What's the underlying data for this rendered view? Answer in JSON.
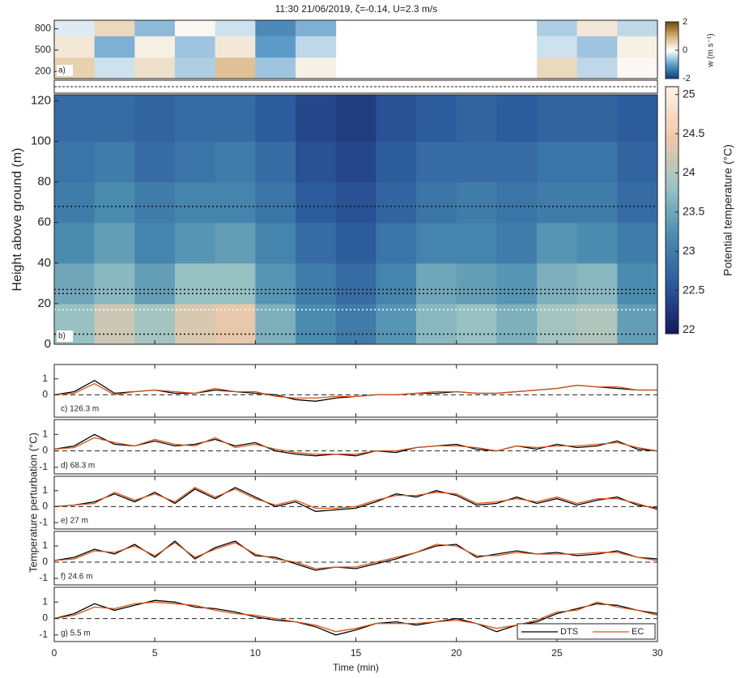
{
  "chart_data": [
    {
      "type": "heatmap",
      "title": "11:30 21/06/2019, ζ=-0.14, U=2.3 m/s",
      "panel_label": "a)",
      "x": [
        0,
        2,
        4,
        6,
        8,
        10,
        12,
        14,
        16,
        18,
        20,
        22,
        24,
        26,
        28,
        30
      ],
      "y": [
        100,
        400,
        700,
        920
      ],
      "values": [
        [
          0.6,
          -0.3,
          0.4,
          -0.5,
          0.8,
          -0.6,
          0.2,
          null,
          null,
          null,
          null,
          null,
          0.5,
          -0.4,
          0.1
        ],
        [
          0.3,
          -0.8,
          0.2,
          -0.6,
          0.3,
          -1.0,
          -0.4,
          null,
          null,
          null,
          null,
          null,
          -0.3,
          -0.6,
          0.2
        ],
        [
          -0.2,
          0.5,
          -0.7,
          0.1,
          -0.3,
          -1.2,
          -0.8,
          null,
          null,
          null,
          null,
          null,
          -0.5,
          0.3,
          -0.4
        ]
      ],
      "xlim": [
        0,
        30
      ],
      "ylim": [
        100,
        920
      ],
      "yticks": [
        200,
        500,
        800
      ],
      "clim": [
        -2,
        2
      ],
      "cticks": [
        -2,
        0,
        2
      ],
      "colorbar_label": "w (m s⁻¹)",
      "colormap": [
        "#0b3d7a",
        "#5d9cc9",
        "#ffffff",
        "#d7b27a",
        "#7a4a0c"
      ]
    },
    {
      "type": "heatmap",
      "panel_label": "b)",
      "ylabel": "Height above ground (m)",
      "x": [
        0,
        2,
        4,
        6,
        8,
        10,
        12,
        14,
        16,
        18,
        20,
        22,
        24,
        26,
        28,
        30
      ],
      "y": [
        0,
        20,
        40,
        60,
        80,
        100,
        123
      ],
      "values": [
        [
          23.8,
          24.2,
          23.9,
          24.3,
          24.4,
          23.6,
          23.2,
          23.0,
          23.3,
          23.7,
          23.8,
          23.6,
          23.9,
          24.0,
          23.4
        ],
        [
          23.5,
          23.7,
          23.4,
          23.8,
          23.8,
          23.3,
          23.0,
          22.8,
          23.1,
          23.5,
          23.4,
          23.3,
          23.6,
          23.7,
          23.2
        ],
        [
          23.2,
          23.4,
          23.1,
          23.3,
          23.4,
          23.1,
          22.8,
          22.6,
          22.9,
          23.1,
          23.1,
          23.0,
          23.3,
          23.2,
          23.0
        ],
        [
          23.0,
          23.2,
          23.0,
          23.1,
          23.1,
          22.9,
          22.6,
          22.5,
          22.7,
          22.9,
          23.0,
          22.9,
          23.0,
          23.0,
          22.8
        ],
        [
          22.9,
          23.0,
          22.8,
          22.9,
          23.0,
          22.8,
          22.5,
          22.4,
          22.6,
          22.8,
          22.8,
          22.8,
          22.9,
          22.9,
          22.7
        ],
        [
          22.8,
          22.8,
          22.7,
          22.8,
          22.8,
          22.6,
          22.4,
          22.3,
          22.5,
          22.6,
          22.7,
          22.6,
          22.7,
          22.7,
          22.6
        ]
      ],
      "xlim": [
        0,
        30
      ],
      "ylim": [
        0,
        123
      ],
      "yticks": [
        0,
        20,
        40,
        60,
        80,
        100,
        120
      ],
      "clim": [
        21.95,
        25.1
      ],
      "cticks": [
        22,
        22.5,
        23,
        23.5,
        24,
        24.5,
        25
      ],
      "colorbar_label": "Potential temperature (°C)",
      "colormap": [
        "#15165e",
        "#2c5a9c",
        "#4a8db0",
        "#9cc4c4",
        "#f0c9a8",
        "#fdf2ec"
      ]
    },
    {
      "type": "line",
      "panel_label": "c) 126.3 m",
      "x": [
        0,
        1,
        2,
        3,
        4,
        5,
        6,
        7,
        8,
        9,
        10,
        11,
        12,
        13,
        14,
        15,
        16,
        17,
        18,
        19,
        20,
        21,
        22,
        23,
        24,
        25,
        26,
        27,
        28,
        29,
        30
      ],
      "series": [
        {
          "color": "#000000",
          "values": [
            0,
            0.2,
            0.9,
            0.1,
            0.2,
            0.3,
            0.1,
            0.1,
            0.3,
            0.2,
            0.1,
            0,
            -0.3,
            -0.4,
            -0.2,
            -0.1,
            0,
            0,
            0.1,
            0.1,
            0.2,
            0.1,
            0.1,
            0.2,
            0.3,
            0.4,
            0.6,
            0.5,
            0.4,
            0.3,
            0.3
          ]
        },
        {
          "color": "#d95319",
          "values": [
            0,
            0.1,
            0.7,
            0,
            0.2,
            0.3,
            0.2,
            0.1,
            0.4,
            0.2,
            0.2,
            -0.1,
            -0.2,
            -0.2,
            -0.1,
            -0.1,
            0,
            0,
            0.1,
            0.2,
            0.2,
            0.1,
            0.1,
            0.2,
            0.3,
            0.4,
            0.6,
            0.5,
            0.5,
            0.3,
            0.3
          ]
        }
      ],
      "xlim": [
        0,
        30
      ],
      "ylim": [
        -1.4,
        1.9
      ],
      "yticks": [
        0,
        1
      ]
    },
    {
      "type": "line",
      "panel_label": "d) 68.3 m",
      "x": [
        0,
        1,
        2,
        3,
        4,
        5,
        6,
        7,
        8,
        9,
        10,
        11,
        12,
        13,
        14,
        15,
        16,
        17,
        18,
        19,
        20,
        21,
        22,
        23,
        24,
        25,
        26,
        27,
        28,
        29,
        30
      ],
      "series": [
        {
          "color": "#000000",
          "values": [
            0.1,
            0.3,
            1.0,
            0.4,
            0.3,
            0.6,
            0.3,
            0.4,
            0.7,
            0.3,
            0.5,
            0,
            -0.2,
            -0.3,
            -0.2,
            -0.3,
            0,
            -0.1,
            0.2,
            0.3,
            0.4,
            0.1,
            0,
            0.3,
            0.1,
            0.4,
            0.2,
            0.3,
            0.6,
            0.1,
            0
          ]
        },
        {
          "color": "#d95319",
          "values": [
            0.1,
            0.2,
            0.8,
            0.5,
            0.3,
            0.7,
            0.4,
            0.3,
            0.8,
            0.2,
            0.4,
            0.1,
            -0.1,
            -0.2,
            -0.2,
            -0.2,
            0,
            0,
            0.2,
            0.3,
            0.3,
            0.2,
            0,
            0.3,
            0.2,
            0.3,
            0.3,
            0.4,
            0.5,
            0.2,
            0
          ]
        }
      ],
      "xlim": [
        0,
        30
      ],
      "ylim": [
        -1.4,
        1.9
      ],
      "yticks": [
        -1,
        0,
        1
      ]
    },
    {
      "type": "line",
      "panel_label": "e) 27 m",
      "ylabel": "Temperature perturbation (°C)",
      "x": [
        0,
        1,
        2,
        3,
        4,
        5,
        6,
        7,
        8,
        9,
        10,
        11,
        12,
        13,
        14,
        15,
        16,
        17,
        18,
        19,
        20,
        21,
        22,
        23,
        24,
        25,
        26,
        27,
        28,
        29,
        30
      ],
      "series": [
        {
          "color": "#000000",
          "values": [
            0,
            0.1,
            0.3,
            0.8,
            0.3,
            0.9,
            0.2,
            1.1,
            0.5,
            1.2,
            0.6,
            0,
            0.3,
            -0.3,
            -0.2,
            -0.1,
            0.3,
            0.8,
            0.6,
            1.0,
            0.7,
            0.1,
            0.2,
            0.6,
            0.2,
            0.5,
            0.1,
            0.4,
            0.6,
            0.1,
            -0.1
          ]
        },
        {
          "color": "#d95319",
          "values": [
            0,
            0.1,
            0.2,
            0.9,
            0.4,
            0.8,
            0.3,
            1.2,
            0.6,
            1.1,
            0.5,
            0.1,
            0.4,
            -0.1,
            -0.1,
            0,
            0.4,
            0.7,
            0.7,
            0.9,
            0.8,
            0.2,
            0.3,
            0.5,
            0.3,
            0.6,
            0.2,
            0.5,
            0.5,
            0.2,
            -0.2
          ]
        }
      ],
      "xlim": [
        0,
        30
      ],
      "ylim": [
        -1.4,
        1.9
      ],
      "yticks": [
        -1,
        0,
        1
      ]
    },
    {
      "type": "line",
      "panel_label": "f) 24.6 m",
      "x": [
        0,
        1,
        2,
        3,
        4,
        5,
        6,
        7,
        8,
        9,
        10,
        11,
        12,
        13,
        14,
        15,
        16,
        17,
        18,
        19,
        20,
        21,
        22,
        23,
        24,
        25,
        26,
        27,
        28,
        29,
        30
      ],
      "series": [
        {
          "color": "#000000",
          "values": [
            0.1,
            0.3,
            0.8,
            0.5,
            1.1,
            0.3,
            1.3,
            0.2,
            0.9,
            1.3,
            0.4,
            0.3,
            -0.1,
            -0.5,
            -0.3,
            -0.4,
            -0.1,
            0.2,
            0.6,
            1.0,
            1.1,
            0.3,
            0.5,
            0.7,
            0.5,
            0.6,
            0.4,
            0.5,
            0.7,
            0.3,
            0.2
          ]
        },
        {
          "color": "#d95319",
          "values": [
            0.1,
            0.2,
            0.7,
            0.6,
            1.0,
            0.4,
            1.2,
            0.3,
            0.8,
            1.2,
            0.5,
            0.2,
            0,
            -0.4,
            -0.3,
            -0.3,
            0,
            0.3,
            0.6,
            1.1,
            1.0,
            0.4,
            0.4,
            0.6,
            0.5,
            0.5,
            0.5,
            0.6,
            0.6,
            0.3,
            0.1
          ]
        }
      ],
      "xlim": [
        0,
        30
      ],
      "ylim": [
        -1.4,
        1.9
      ],
      "yticks": [
        -1,
        0,
        1
      ]
    },
    {
      "type": "line",
      "panel_label": "g) 5.5 m",
      "xlabel": "Time (min)",
      "x": [
        0,
        1,
        2,
        3,
        4,
        5,
        6,
        7,
        8,
        9,
        10,
        11,
        12,
        13,
        14,
        15,
        16,
        17,
        18,
        19,
        20,
        21,
        22,
        23,
        24,
        25,
        26,
        27,
        28,
        29,
        30
      ],
      "series": [
        {
          "name": "DTS",
          "color": "#000000",
          "values": [
            0,
            0.3,
            0.9,
            0.5,
            0.8,
            1.1,
            1.0,
            0.7,
            0.6,
            0.4,
            0.1,
            -0.1,
            -0.2,
            -0.5,
            -1.0,
            -0.7,
            -0.3,
            -0.2,
            -0.4,
            -0.2,
            0,
            -0.3,
            -0.8,
            -0.4,
            -0.2,
            0.3,
            0.6,
            0.9,
            0.8,
            0.5,
            0.3
          ]
        },
        {
          "name": "EC",
          "color": "#d95319",
          "values": [
            0,
            0.2,
            0.7,
            0.6,
            0.9,
            1.0,
            0.9,
            0.8,
            0.5,
            0.3,
            0.2,
            0,
            -0.2,
            -0.4,
            -0.8,
            -0.6,
            -0.3,
            -0.3,
            -0.3,
            -0.2,
            -0.1,
            -0.3,
            -0.6,
            -0.4,
            -0.1,
            0.4,
            0.5,
            1.0,
            0.7,
            0.5,
            0.2
          ]
        }
      ],
      "xlim": [
        0,
        30
      ],
      "ylim": [
        -1.4,
        1.9
      ],
      "yticks": [
        -1,
        0,
        1
      ],
      "xticks": [
        0,
        5,
        10,
        15,
        20,
        25,
        30
      ],
      "legend": "lower right"
    }
  ]
}
